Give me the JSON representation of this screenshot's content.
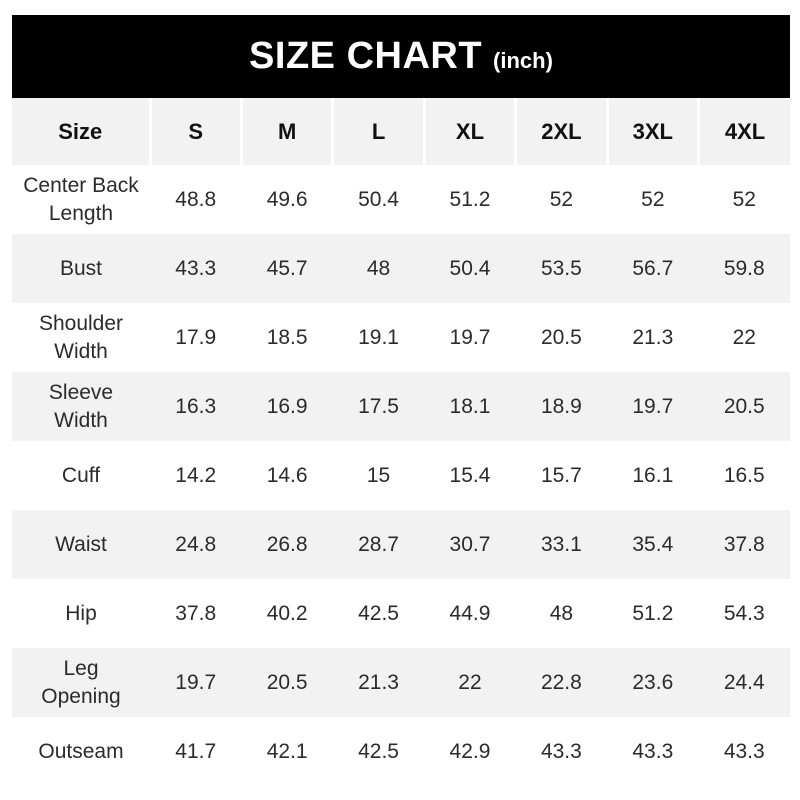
{
  "title": {
    "main": "SIZE CHART",
    "unit": "(inch)"
  },
  "table": {
    "header": [
      "Size",
      "S",
      "M",
      "L",
      "XL",
      "2XL",
      "3XL",
      "4XL"
    ],
    "rows": [
      {
        "label": "Center Back\nLength",
        "values": [
          "48.8",
          "49.6",
          "50.4",
          "51.2",
          "52",
          "52",
          "52"
        ]
      },
      {
        "label": "Bust",
        "values": [
          "43.3",
          "45.7",
          "48",
          "50.4",
          "53.5",
          "56.7",
          "59.8"
        ]
      },
      {
        "label": "Shoulder\nWidth",
        "values": [
          "17.9",
          "18.5",
          "19.1",
          "19.7",
          "20.5",
          "21.3",
          "22"
        ]
      },
      {
        "label": "Sleeve\nWidth",
        "values": [
          "16.3",
          "16.9",
          "17.5",
          "18.1",
          "18.9",
          "19.7",
          "20.5"
        ]
      },
      {
        "label": "Cuff",
        "values": [
          "14.2",
          "14.6",
          "15",
          "15.4",
          "15.7",
          "16.1",
          "16.5"
        ]
      },
      {
        "label": "Waist",
        "values": [
          "24.8",
          "26.8",
          "28.7",
          "30.7",
          "33.1",
          "35.4",
          "37.8"
        ]
      },
      {
        "label": "Hip",
        "values": [
          "37.8",
          "40.2",
          "42.5",
          "44.9",
          "48",
          "51.2",
          "54.3"
        ]
      },
      {
        "label": "Leg\nOpening",
        "values": [
          "19.7",
          "20.5",
          "21.3",
          "22",
          "22.8",
          "23.6",
          "24.4"
        ]
      },
      {
        "label": "Outseam",
        "values": [
          "41.7",
          "42.1",
          "42.5",
          "42.9",
          "43.3",
          "43.3",
          "43.3"
        ]
      }
    ]
  },
  "colors": {
    "title_bar_bg": "#000000",
    "title_text": "#ffffff",
    "zebra_gray": "#f2f2f2",
    "row_white": "#ffffff",
    "header_separator": "#ffffff",
    "cell_text": "#2b2b2b"
  },
  "chart_data": {
    "type": "table",
    "title": "SIZE CHART (inch)",
    "categories": [
      "S",
      "M",
      "L",
      "XL",
      "2XL",
      "3XL",
      "4XL"
    ],
    "series": [
      {
        "name": "Center Back Length",
        "values": [
          48.8,
          49.6,
          50.4,
          51.2,
          52,
          52,
          52
        ]
      },
      {
        "name": "Bust",
        "values": [
          43.3,
          45.7,
          48,
          50.4,
          53.5,
          56.7,
          59.8
        ]
      },
      {
        "name": "Shoulder Width",
        "values": [
          17.9,
          18.5,
          19.1,
          19.7,
          20.5,
          21.3,
          22
        ]
      },
      {
        "name": "Sleeve Width",
        "values": [
          16.3,
          16.9,
          17.5,
          18.1,
          18.9,
          19.7,
          20.5
        ]
      },
      {
        "name": "Cuff",
        "values": [
          14.2,
          14.6,
          15,
          15.4,
          15.7,
          16.1,
          16.5
        ]
      },
      {
        "name": "Waist",
        "values": [
          24.8,
          26.8,
          28.7,
          30.7,
          33.1,
          35.4,
          37.8
        ]
      },
      {
        "name": "Hip",
        "values": [
          37.8,
          40.2,
          42.5,
          44.9,
          48,
          51.2,
          54.3
        ]
      },
      {
        "name": "Leg Opening",
        "values": [
          19.7,
          20.5,
          21.3,
          22,
          22.8,
          23.6,
          24.4
        ]
      },
      {
        "name": "Outseam",
        "values": [
          41.7,
          42.1,
          42.5,
          42.9,
          43.3,
          43.3,
          43.3
        ]
      }
    ],
    "layout": {
      "unit": "inch",
      "zebra_striping": true,
      "header_position": "top"
    }
  }
}
